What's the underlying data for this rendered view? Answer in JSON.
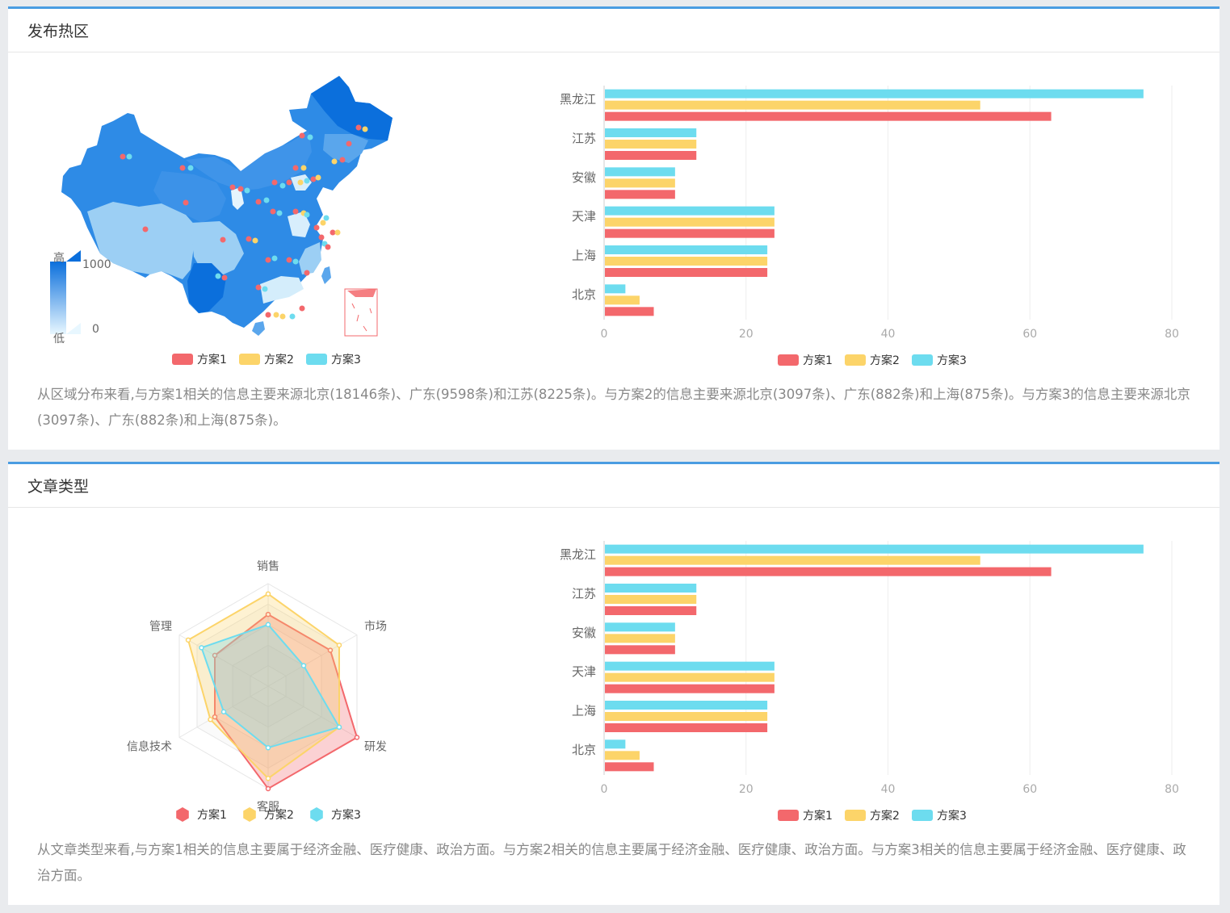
{
  "sections": [
    {
      "title": "发布热区",
      "summary": "从区域分布来看,与方案1相关的信息主要来源北京(18146条)、广东(9598条)和江苏(8225条)。与方案2的信息主要来源北京(3097条)、广东(882条)和上海(875条)。与方案3的信息主要来源北京(3097条)、广东(882条)和上海(875条)。"
    },
    {
      "title": "文章类型",
      "summary": "从文章类型来看,与方案1相关的信息主要属于经济金融、医疗健康、政治方面。与方案2相关的信息主要属于经济金融、医疗健康、政治方面。与方案3相关的信息主要属于经济金融、医疗健康、政治方面。"
    }
  ],
  "colors": {
    "s1": "#f3686c",
    "s2": "#fcd469",
    "s3": "#6ddcef",
    "accent": "#4a9de2"
  },
  "map_legend": {
    "high_label": "高",
    "low_label": "低",
    "max_value": "1000",
    "min_value": "0"
  },
  "legend": [
    "方案1",
    "方案2",
    "方案3"
  ],
  "chart_data": [
    {
      "type": "map",
      "series": [
        {
          "name": "方案1"
        },
        {
          "name": "方案2"
        },
        {
          "name": "方案3"
        }
      ],
      "visual_range": [
        0,
        1000
      ]
    },
    {
      "type": "bar",
      "orientation": "horizontal",
      "categories": [
        "北京",
        "上海",
        "天津",
        "安徽",
        "江苏",
        "黑龙江"
      ],
      "series": [
        {
          "name": "方案1",
          "values": [
            7,
            23,
            24,
            10,
            13,
            63
          ]
        },
        {
          "name": "方案2",
          "values": [
            5,
            23,
            24,
            10,
            13,
            53
          ]
        },
        {
          "name": "方案3",
          "values": [
            3,
            23,
            24,
            10,
            13,
            76
          ]
        }
      ],
      "xlim": [
        0,
        80
      ],
      "xticks": [
        0,
        20,
        40,
        60,
        80
      ]
    },
    {
      "type": "radar",
      "indicators": [
        "销售",
        "市场",
        "研发",
        "客服",
        "信息技术",
        "管理"
      ],
      "max": 100,
      "series": [
        {
          "name": "方案1",
          "values": [
            70,
            70,
            100,
            100,
            60,
            60
          ]
        },
        {
          "name": "方案2",
          "values": [
            90,
            80,
            80,
            90,
            65,
            90
          ]
        },
        {
          "name": "方案3",
          "values": [
            60,
            40,
            80,
            60,
            50,
            75
          ]
        }
      ]
    },
    {
      "type": "bar",
      "orientation": "horizontal",
      "categories": [
        "北京",
        "上海",
        "天津",
        "安徽",
        "江苏",
        "黑龙江"
      ],
      "series": [
        {
          "name": "方案1",
          "values": [
            7,
            23,
            24,
            10,
            13,
            63
          ]
        },
        {
          "name": "方案2",
          "values": [
            5,
            23,
            24,
            10,
            13,
            53
          ]
        },
        {
          "name": "方案3",
          "values": [
            3,
            23,
            24,
            10,
            13,
            76
          ]
        }
      ],
      "xlim": [
        0,
        80
      ],
      "xticks": [
        0,
        20,
        40,
        60,
        80
      ]
    }
  ]
}
